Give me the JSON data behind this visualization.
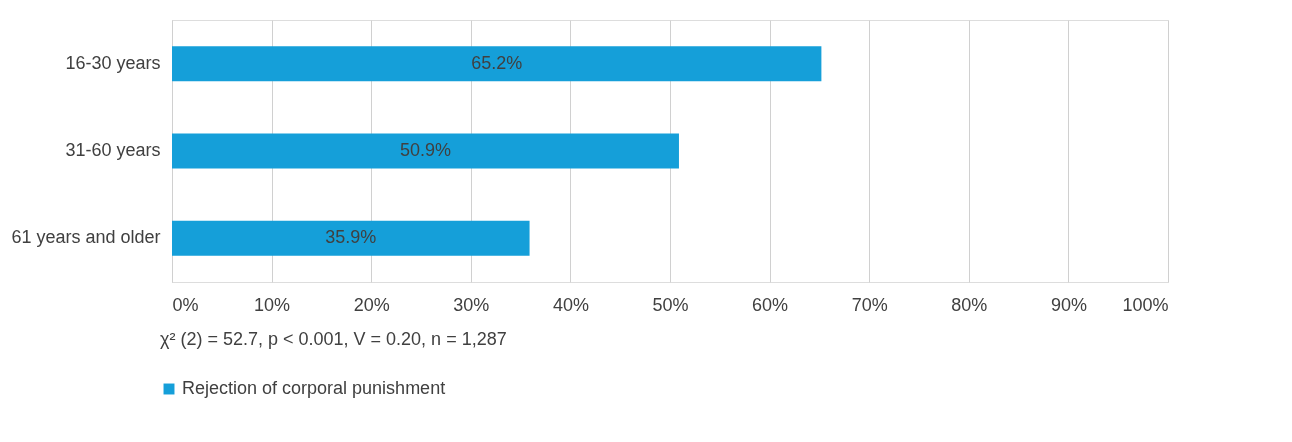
{
  "chart_data": {
    "type": "bar",
    "orientation": "horizontal",
    "categories": [
      "16-30 years",
      "31-60 years",
      "61 years and older"
    ],
    "series": [
      {
        "name": "Rejection of corporal punishment",
        "color": "#159fd9",
        "values": [
          65.2,
          50.9,
          35.9
        ],
        "value_labels": [
          "65.2%",
          "50.9%",
          "35.9%"
        ]
      }
    ],
    "xlim": [
      0,
      100
    ],
    "xticks": [
      {
        "value": 0,
        "label": "0%"
      },
      {
        "value": 10,
        "label": "10%"
      },
      {
        "value": 20,
        "label": "20%"
      },
      {
        "value": 30,
        "label": "30%"
      },
      {
        "value": 40,
        "label": "40%"
      },
      {
        "value": 50,
        "label": "50%"
      },
      {
        "value": 60,
        "label": "60%"
      },
      {
        "value": 70,
        "label": "70%"
      },
      {
        "value": 80,
        "label": "80%"
      },
      {
        "value": 90,
        "label": "90%"
      },
      {
        "value": 100,
        "label": "100%"
      }
    ],
    "grid": "x",
    "legend": "bottom left",
    "annotations": [
      "χ² (2) = 52.7, p < 0.001, V = 0.20, n = 1,287"
    ]
  }
}
